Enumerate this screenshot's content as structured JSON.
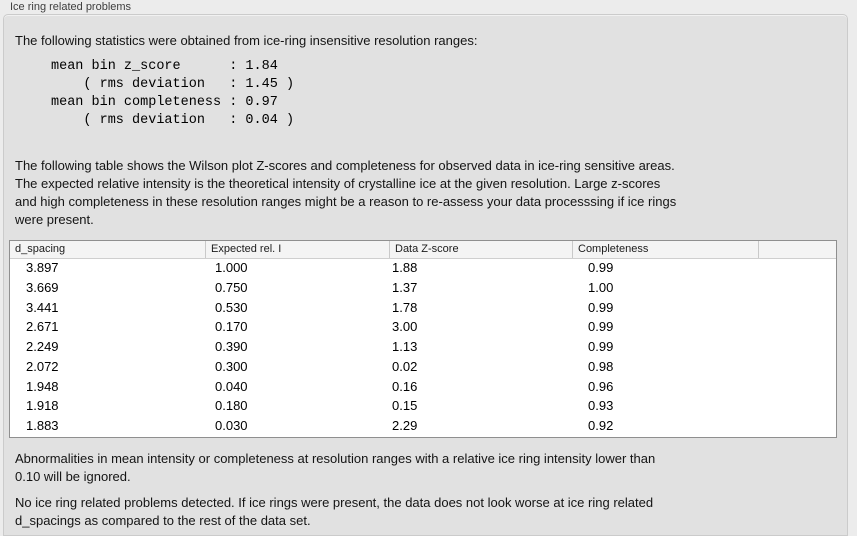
{
  "panel": {
    "title": "Ice ring related problems",
    "stats_intro": "The following statistics were obtained from ice-ring insensitive resolution ranges:",
    "stats_lines": [
      "mean bin z_score      : 1.84",
      "    ( rms deviation   : 1.45 )",
      "mean bin completeness : 0.97",
      "    ( rms deviation   : 0.04 )"
    ],
    "table_intro_lines": [
      "The following table shows the Wilson plot Z-scores and completeness for observed data in ice-ring sensitive areas.",
      "The expected relative intensity is the theoretical intensity of crystalline ice at the given resolution. Large z-scores",
      "and high completeness in these resolution ranges might be a reason to re-assess your data processsing if ice rings",
      "were present."
    ],
    "note_lines": [
      "Abnormalities in mean intensity or completeness at resolution ranges with a relative ice ring intensity lower than",
      "0.10 will be ignored."
    ],
    "conclusion_lines": [
      "No ice ring related problems detected. If ice rings were present, the data does not look worse at ice ring related",
      "d_spacings as compared to the rest of the data set."
    ]
  },
  "table": {
    "columns": [
      "d_spacing",
      "Expected rel. I",
      "Data Z-score",
      "Completeness",
      ""
    ],
    "rows": [
      [
        "3.897",
        "1.000",
        "1.88",
        "0.99"
      ],
      [
        "3.669",
        "0.750",
        "1.37",
        "1.00"
      ],
      [
        "3.441",
        "0.530",
        "1.78",
        "0.99"
      ],
      [
        "2.671",
        "0.170",
        "3.00",
        "0.99"
      ],
      [
        "2.249",
        "0.390",
        "1.13",
        "0.99"
      ],
      [
        "2.072",
        "0.300",
        "0.02",
        "0.98"
      ],
      [
        "1.948",
        "0.040",
        "0.16",
        "0.96"
      ],
      [
        "1.918",
        "0.180",
        "0.15",
        "0.93"
      ],
      [
        "1.883",
        "0.030",
        "2.29",
        "0.92"
      ]
    ]
  },
  "colors": {
    "page_background": "#ececec",
    "groupbox_background": "#e1e1e1",
    "table_background": "#ffffff",
    "table_border": "#8f8f8f"
  }
}
